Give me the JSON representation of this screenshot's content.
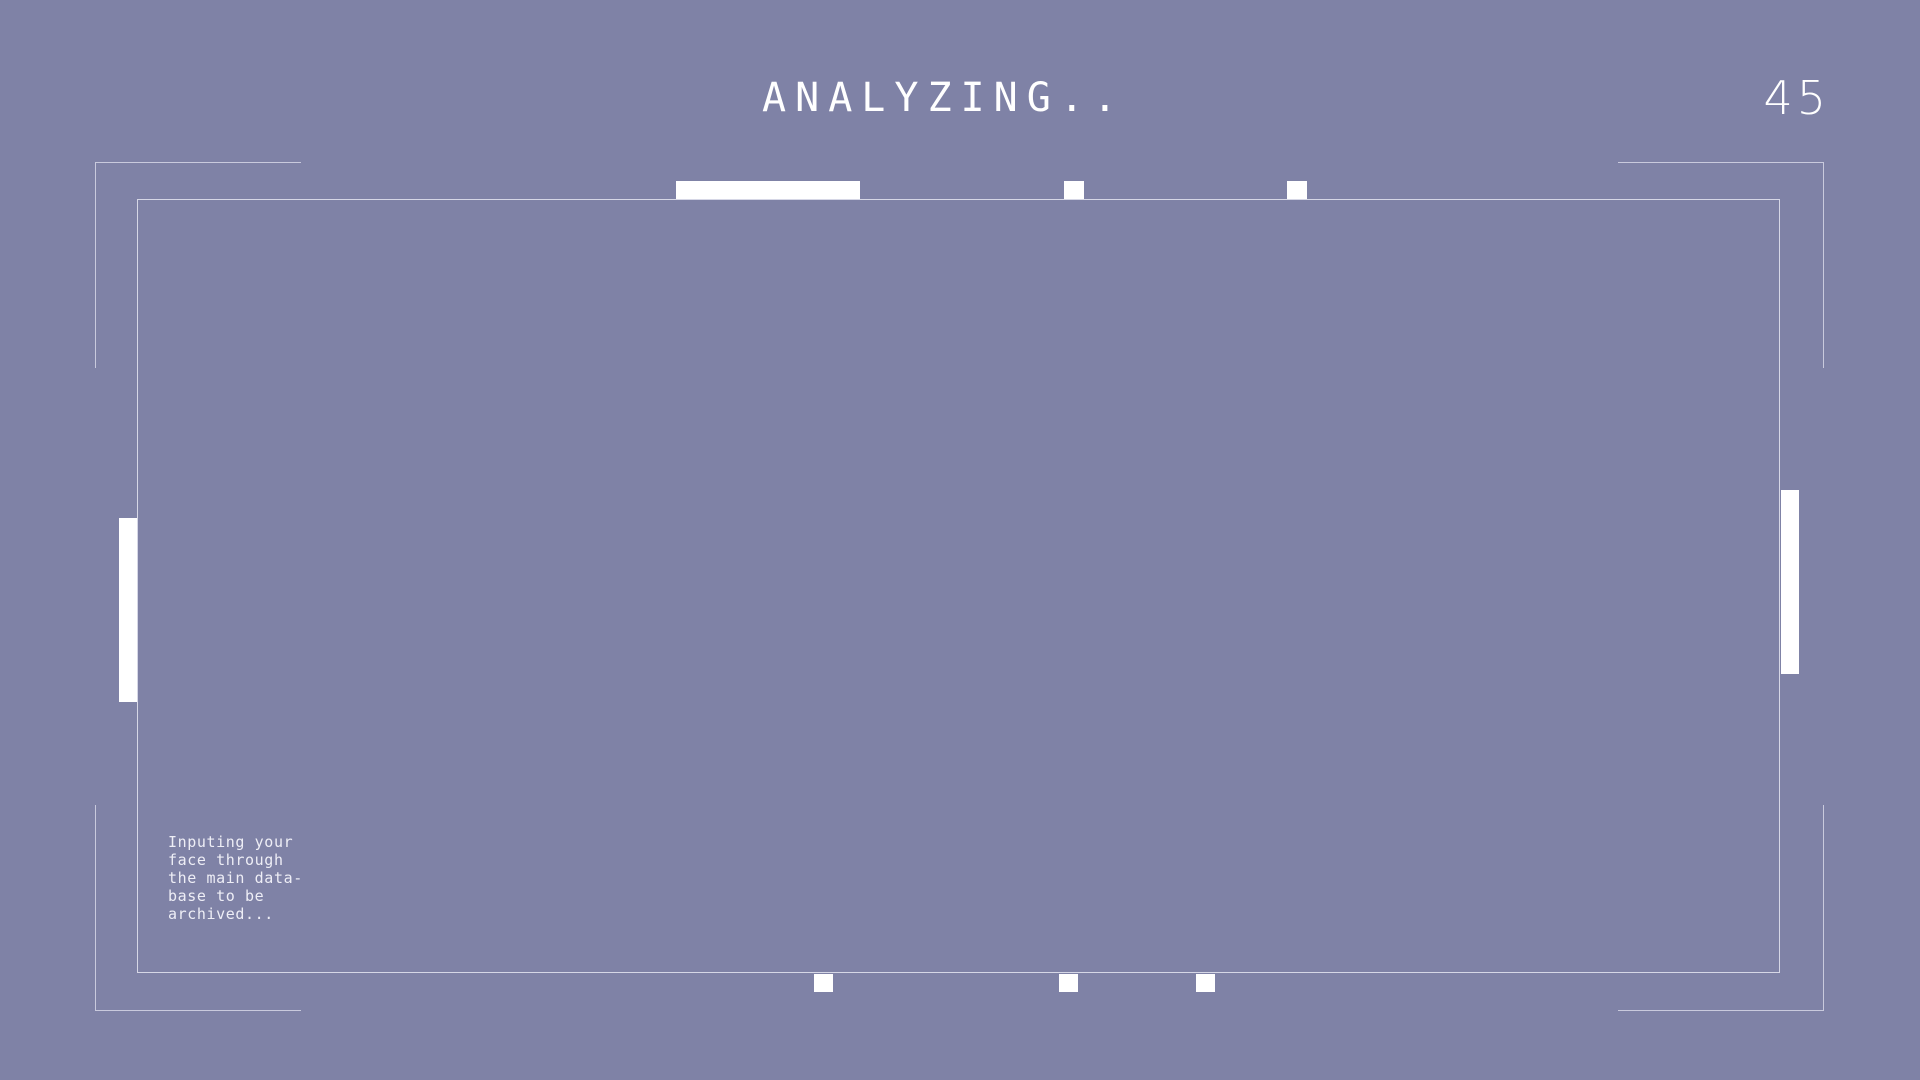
{
  "header": {
    "status_text": "ANALYZING..",
    "counter": "45"
  },
  "footer_note": {
    "text": "Inputing your\nface through\nthe main data-\nbase to be\narchived..."
  },
  "colors": {
    "background": "#7f82a6",
    "foreground": "#ffffff",
    "frame_line": "#d6d7e6"
  }
}
